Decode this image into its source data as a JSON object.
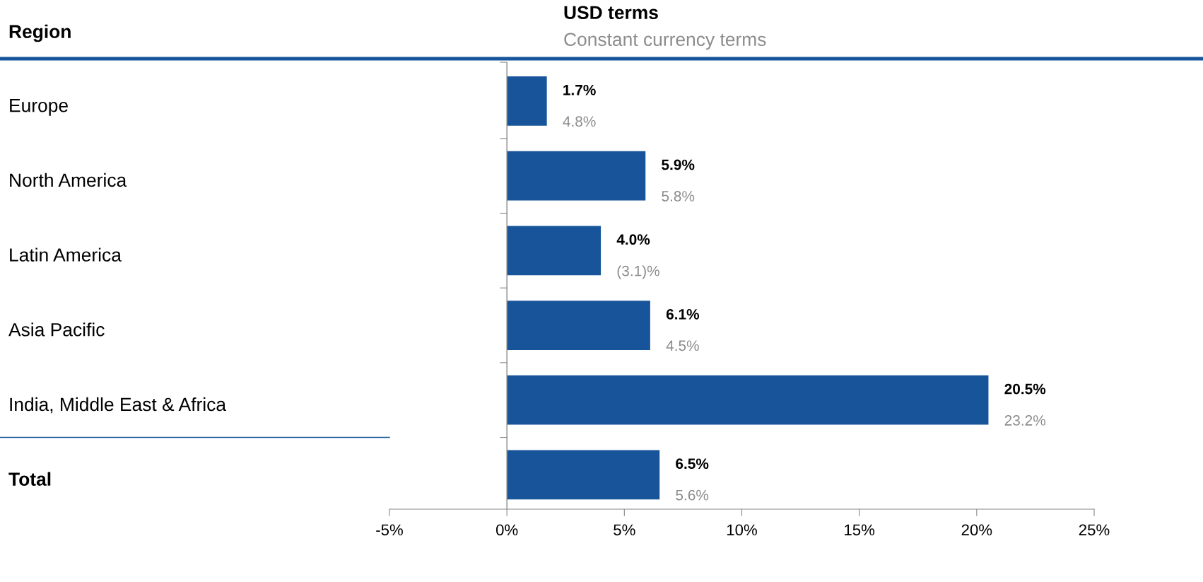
{
  "chart_data": {
    "type": "bar",
    "orientation": "horizontal",
    "title": "USD terms",
    "subtitle": "Constant currency terms",
    "ylabel": "Region",
    "categories": [
      "Europe",
      "North America",
      "Latin America",
      "Asia Pacific",
      "India, Middle East & Africa",
      "Total"
    ],
    "values": [
      1.7,
      5.9,
      4.0,
      6.1,
      20.5,
      6.5
    ],
    "color": "#175499",
    "value_labels": [
      "1.7%",
      "5.9%",
      "4.0%",
      "6.1%",
      "20.5%",
      "6.5%"
    ],
    "annotations": [
      {
        "text": "4.8%",
        "x": 1.7,
        "y": "Europe"
      },
      {
        "text": "5.8%",
        "x": 5.9,
        "y": "North America"
      },
      {
        "text": "(3.1)%",
        "x": 4.0,
        "y": "Latin America"
      },
      {
        "text": "4.5%",
        "x": 6.1,
        "y": "Asia Pacific"
      },
      {
        "text": "23.2%",
        "x": 20.5,
        "y": "India, Middle East & Africa"
      },
      {
        "text": "5.6%",
        "x": 6.5,
        "y": "Total"
      }
    ],
    "xlim": [
      -5,
      25
    ],
    "xticks": [
      {
        "value": -5,
        "label": "-5%"
      },
      {
        "value": 0,
        "label": "0%"
      },
      {
        "value": 5,
        "label": "5%"
      },
      {
        "value": 10,
        "label": "10%"
      },
      {
        "value": 15,
        "label": "15%"
      },
      {
        "value": 20,
        "label": "20%"
      },
      {
        "value": 25,
        "label": "25%"
      }
    ],
    "ref_lines": [
      {
        "axis": "x",
        "value": 0,
        "color": "#888888"
      }
    ],
    "grid": false
  }
}
